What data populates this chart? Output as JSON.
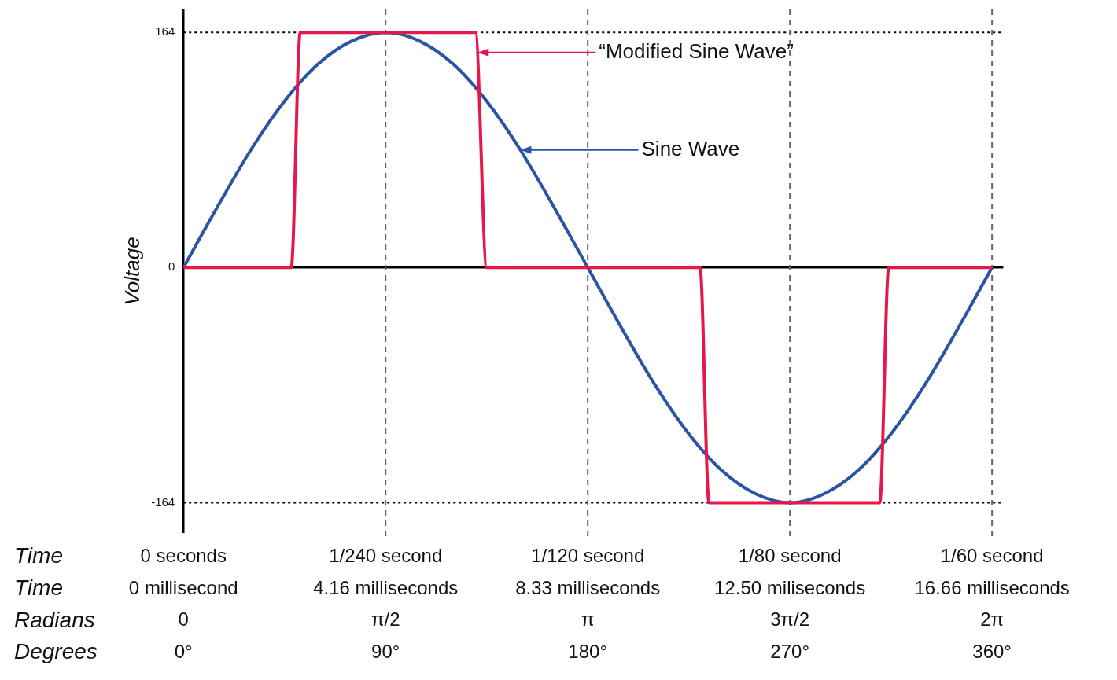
{
  "chart_data": {
    "type": "line",
    "ylabel": "Voltage",
    "ylim": [
      -185,
      180
    ],
    "xlim": [
      0,
      365
    ],
    "xticks": [
      {
        "value": 0,
        "label": "0°"
      },
      {
        "value": 90,
        "label": "90°"
      },
      {
        "value": 180,
        "label": "180°"
      },
      {
        "value": 270,
        "label": "270°"
      },
      {
        "value": 360,
        "label": "360°"
      }
    ],
    "yticks": [
      -164,
      0,
      164
    ],
    "grid": false,
    "legend": false,
    "marker": "none",
    "line_style": "solid",
    "series": [
      {
        "color": "#e8174a",
        "x": [
          0,
          48,
          52,
          130,
          135,
          230,
          234,
          310,
          314,
          360
        ],
        "values": [
          0,
          0,
          164,
          164,
          0,
          0,
          -164,
          -164,
          0,
          0
        ]
      },
      {
        "color": "#2a55a5",
        "x": [
          0,
          15,
          30,
          45,
          60,
          75,
          90,
          105,
          120,
          135,
          150,
          165,
          180,
          195,
          210,
          225,
          240,
          255,
          270,
          285,
          300,
          315,
          330,
          345,
          360
        ],
        "values": [
          0,
          42,
          82,
          116,
          142,
          158,
          164,
          158,
          142,
          116,
          82,
          42,
          0,
          -42,
          -82,
          -116,
          -142,
          -158,
          -164,
          -158,
          -142,
          -116,
          -82,
          -42,
          0
        ]
      }
    ],
    "ref_lines": [
      {
        "axis": "y",
        "value": 0,
        "color": "#000000",
        "line_style": "solid"
      },
      {
        "axis": "y",
        "value": 164,
        "color": "#000000",
        "line_style": "dotted"
      },
      {
        "axis": "y",
        "value": -164,
        "color": "#000000",
        "line_style": "dotted"
      },
      {
        "axis": "x",
        "value": 90,
        "color": "#666666",
        "line_style": "dashed"
      },
      {
        "axis": "x",
        "value": 180,
        "color": "#666666",
        "line_style": "dashed"
      },
      {
        "axis": "x",
        "value": 270,
        "color": "#666666",
        "line_style": "dashed"
      },
      {
        "axis": "x",
        "value": 360,
        "color": "#666666",
        "line_style": "dashed"
      }
    ],
    "annotations": [
      {
        "text": "“Modified Sine Wave”",
        "x": 131,
        "y": 150
      },
      {
        "text": "Sine Wave",
        "x": 150,
        "y": 82
      },
      "Time",
      "Time",
      "Radians",
      "Degrees",
      "0 seconds",
      "0 millisecond",
      "0",
      "1/240 second",
      "4.16 milliseconds",
      "π/2",
      "1/120 second",
      "8.33 milliseconds",
      "π",
      "1/80 second",
      "12.50 miliseconds",
      "3π/2",
      "1/60 second",
      "16.66 milliseconds",
      "2π"
    ]
  }
}
